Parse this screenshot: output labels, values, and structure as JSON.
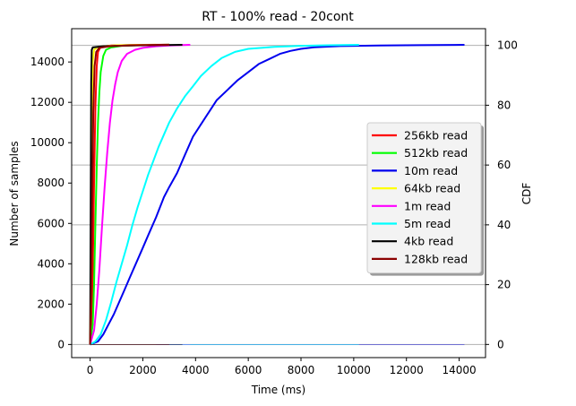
{
  "chart_data": {
    "type": "line",
    "title": "RT - 100% read - 20cont",
    "xlabel": "Time (ms)",
    "ylabel": "Number of samples",
    "ylabel_right": "CDF",
    "xlim": [
      -700,
      15000
    ],
    "ylim": [
      -650,
      15650
    ],
    "ylim_right": [
      -4.4,
      105.6
    ],
    "x_ticks": [
      0,
      2000,
      4000,
      6000,
      8000,
      10000,
      12000,
      14000
    ],
    "y_ticks": [
      0,
      2000,
      4000,
      6000,
      8000,
      10000,
      12000,
      14000
    ],
    "y_right_ticks": [
      0,
      20,
      40,
      60,
      80,
      100
    ],
    "grid": "horizontal at right-axis ticks",
    "legend_position": "center-right",
    "series": [
      {
        "name": "256kb read",
        "color": "#ff0000",
        "points": [
          [
            0,
            0
          ],
          [
            50,
            700
          ],
          [
            100,
            3500
          ],
          [
            150,
            8000
          ],
          [
            200,
            11800
          ],
          [
            250,
            13800
          ],
          [
            300,
            14500
          ],
          [
            400,
            14750
          ],
          [
            800,
            14820
          ],
          [
            2000,
            14850
          ],
          [
            3000,
            14855
          ]
        ]
      },
      {
        "name": "512kb read",
        "color": "#00ff00",
        "points": [
          [
            0,
            0
          ],
          [
            100,
            1000
          ],
          [
            150,
            3000
          ],
          [
            200,
            6000
          ],
          [
            250,
            8800
          ],
          [
            300,
            11000
          ],
          [
            350,
            12500
          ],
          [
            400,
            13500
          ],
          [
            500,
            14300
          ],
          [
            600,
            14600
          ],
          [
            800,
            14720
          ],
          [
            1200,
            14800
          ],
          [
            2000,
            14840
          ],
          [
            3000,
            14855
          ]
        ]
      },
      {
        "name": "10m read",
        "color": "#0000ee",
        "points": [
          [
            0,
            0
          ],
          [
            300,
            150
          ],
          [
            500,
            500
          ],
          [
            700,
            1000
          ],
          [
            900,
            1500
          ],
          [
            1100,
            2100
          ],
          [
            1300,
            2700
          ],
          [
            1500,
            3300
          ],
          [
            1800,
            4200
          ],
          [
            2000,
            4800
          ],
          [
            2200,
            5400
          ],
          [
            2500,
            6300
          ],
          [
            2800,
            7300
          ],
          [
            3000,
            7800
          ],
          [
            3300,
            8500
          ],
          [
            3600,
            9400
          ],
          [
            3900,
            10300
          ],
          [
            4200,
            10900
          ],
          [
            4500,
            11500
          ],
          [
            4800,
            12100
          ],
          [
            5200,
            12600
          ],
          [
            5600,
            13100
          ],
          [
            6000,
            13500
          ],
          [
            6400,
            13900
          ],
          [
            6800,
            14150
          ],
          [
            7200,
            14400
          ],
          [
            7600,
            14550
          ],
          [
            8000,
            14650
          ],
          [
            8500,
            14730
          ],
          [
            9500,
            14790
          ],
          [
            11000,
            14820
          ],
          [
            12500,
            14835
          ],
          [
            14200,
            14850
          ]
        ]
      },
      {
        "name": "64kb read",
        "color": "#ffff00",
        "points": [
          [
            0,
            0
          ],
          [
            40,
            5000
          ],
          [
            70,
            11000
          ],
          [
            100,
            14000
          ],
          [
            150,
            14600
          ],
          [
            300,
            14750
          ],
          [
            1000,
            14830
          ],
          [
            2500,
            14855
          ]
        ]
      },
      {
        "name": "1m read",
        "color": "#ff00ff",
        "points": [
          [
            0,
            0
          ],
          [
            150,
            700
          ],
          [
            250,
            2000
          ],
          [
            350,
            3700
          ],
          [
            450,
            5800
          ],
          [
            550,
            7800
          ],
          [
            650,
            9500
          ],
          [
            750,
            11000
          ],
          [
            850,
            12100
          ],
          [
            950,
            12900
          ],
          [
            1050,
            13500
          ],
          [
            1200,
            14050
          ],
          [
            1400,
            14400
          ],
          [
            1700,
            14600
          ],
          [
            2000,
            14700
          ],
          [
            2500,
            14780
          ],
          [
            3000,
            14820
          ],
          [
            3800,
            14850
          ]
        ]
      },
      {
        "name": "5m read",
        "color": "#00ffff",
        "points": [
          [
            0,
            0
          ],
          [
            200,
            150
          ],
          [
            400,
            500
          ],
          [
            600,
            1200
          ],
          [
            800,
            2100
          ],
          [
            1000,
            3100
          ],
          [
            1200,
            4000
          ],
          [
            1400,
            4900
          ],
          [
            1600,
            5900
          ],
          [
            1800,
            6800
          ],
          [
            2000,
            7600
          ],
          [
            2200,
            8400
          ],
          [
            2400,
            9100
          ],
          [
            2600,
            9800
          ],
          [
            2800,
            10400
          ],
          [
            3000,
            11000
          ],
          [
            3300,
            11700
          ],
          [
            3600,
            12300
          ],
          [
            3900,
            12800
          ],
          [
            4200,
            13300
          ],
          [
            4600,
            13800
          ],
          [
            5000,
            14200
          ],
          [
            5500,
            14500
          ],
          [
            6000,
            14650
          ],
          [
            7000,
            14750
          ],
          [
            8000,
            14800
          ],
          [
            9000,
            14830
          ],
          [
            10200,
            14850
          ]
        ]
      },
      {
        "name": "4kb read",
        "color": "#000000",
        "points": [
          [
            0,
            0
          ],
          [
            20,
            6000
          ],
          [
            40,
            13000
          ],
          [
            60,
            14600
          ],
          [
            100,
            14720
          ],
          [
            500,
            14780
          ],
          [
            1500,
            14820
          ],
          [
            3500,
            14850
          ]
        ]
      },
      {
        "name": "128kb read",
        "color": "#8b0000",
        "points": [
          [
            0,
            0
          ],
          [
            40,
            2500
          ],
          [
            80,
            7000
          ],
          [
            120,
            11500
          ],
          [
            170,
            13800
          ],
          [
            230,
            14500
          ],
          [
            350,
            14700
          ],
          [
            800,
            14790
          ],
          [
            2000,
            14840
          ],
          [
            3000,
            14855
          ]
        ]
      }
    ]
  }
}
